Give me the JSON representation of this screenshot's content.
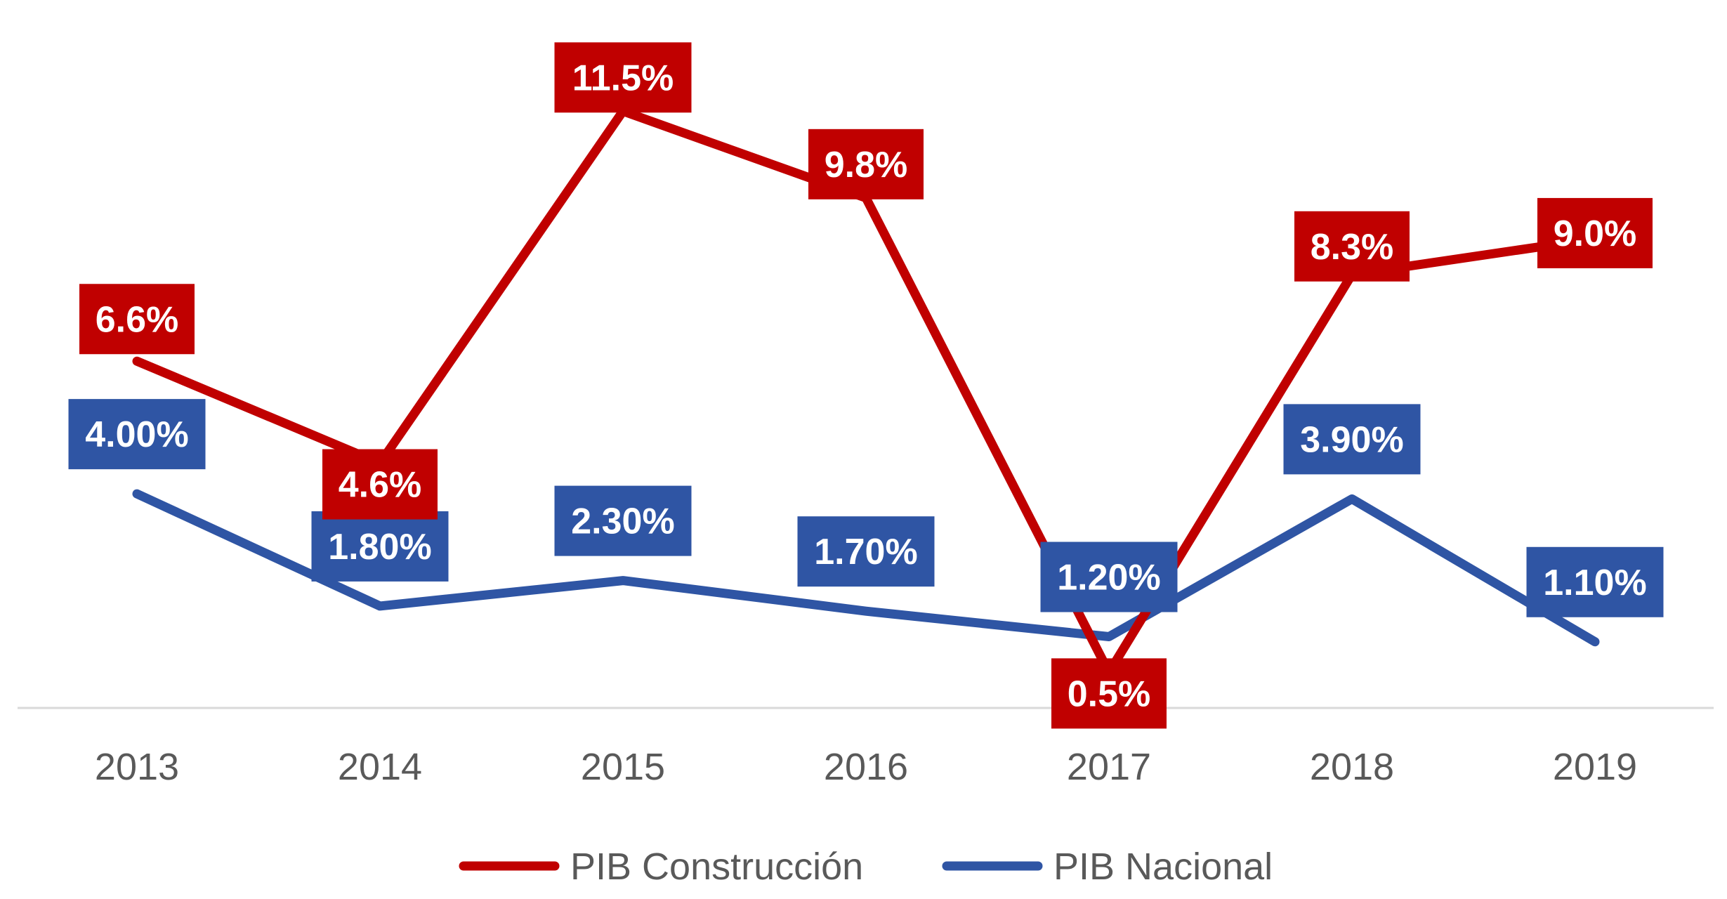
{
  "chart_data": {
    "type": "line",
    "title": "",
    "xlabel": "",
    "ylabel": "",
    "categories": [
      "2013",
      "2014",
      "2015",
      "2016",
      "2017",
      "2018",
      "2019"
    ],
    "ylim": [
      -0.5,
      12
    ],
    "grid": false,
    "legend_position": "bottom",
    "series": [
      {
        "name": "PIB Construcción",
        "color": "#C00000",
        "values": [
          6.6,
          4.6,
          11.5,
          9.8,
          0.5,
          8.3,
          9.0
        ],
        "labels": [
          "6.6%",
          "4.6%",
          "11.5%",
          "9.8%",
          "0.5%",
          "8.3%",
          "9.0%"
        ]
      },
      {
        "name": "PIB Nacional",
        "color": "#2F55A4",
        "values": [
          4.0,
          1.8,
          2.3,
          1.7,
          1.2,
          3.9,
          1.1
        ],
        "labels": [
          "4.00%",
          "1.80%",
          "2.30%",
          "1.70%",
          "1.20%",
          "3.90%",
          "1.10%"
        ]
      }
    ]
  }
}
